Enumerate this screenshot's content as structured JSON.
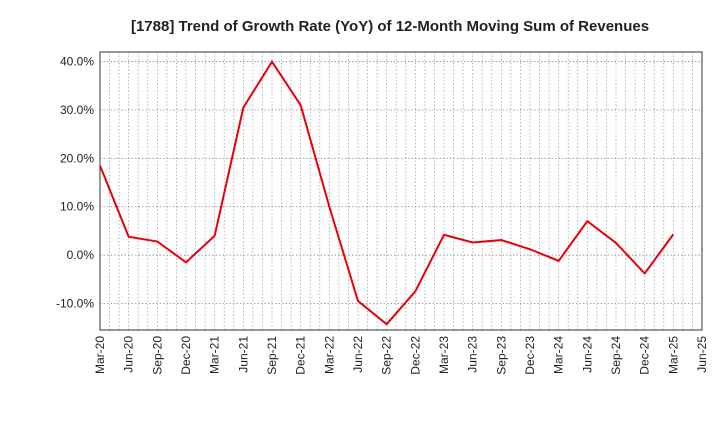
{
  "chart_data": {
    "type": "line",
    "title": "[1788]  Trend of Growth Rate (YoY) of 12-Month Moving Sum of Revenues",
    "xlabel": "",
    "ylabel": "",
    "x_tick_labels": [
      "Mar-20",
      "Jun-20",
      "Sep-20",
      "Dec-20",
      "Mar-21",
      "Jun-21",
      "Sep-21",
      "Dec-21",
      "Mar-22",
      "Jun-22",
      "Sep-22",
      "Dec-22",
      "Mar-23",
      "Jun-23",
      "Sep-23",
      "Dec-23",
      "Mar-24",
      "Jun-24",
      "Sep-24",
      "Dec-24",
      "Mar-25",
      "Jun-25"
    ],
    "y_tick_values": [
      40,
      30,
      20,
      10,
      0,
      -10
    ],
    "y_tick_labels": [
      "40.0%",
      "30.0%",
      "20.0%",
      "10.0%",
      "0.0%",
      "-10.0%"
    ],
    "ylim": [
      -15.5,
      42
    ],
    "grid": true,
    "line_color": "#e8000b",
    "series": [
      {
        "name": "",
        "x": [
          "Mar-20",
          "Jun-20",
          "Sep-20",
          "Dec-20",
          "Mar-21",
          "Jun-21",
          "Sep-21",
          "Dec-21",
          "Mar-22",
          "Jun-22",
          "Sep-22",
          "Dec-22",
          "Mar-23",
          "Jun-23",
          "Sep-23",
          "Dec-23",
          "Mar-24",
          "Jun-24",
          "Sep-24",
          "Dec-24",
          "Mar-25"
        ],
        "values": [
          18.5,
          3.8,
          2.8,
          -1.5,
          4.0,
          30.5,
          40.0,
          31.0,
          10.0,
          -9.5,
          -14.3,
          -7.5,
          4.2,
          2.6,
          3.1,
          1.2,
          -1.2,
          7.0,
          2.5,
          -3.8,
          4.3
        ]
      }
    ]
  }
}
